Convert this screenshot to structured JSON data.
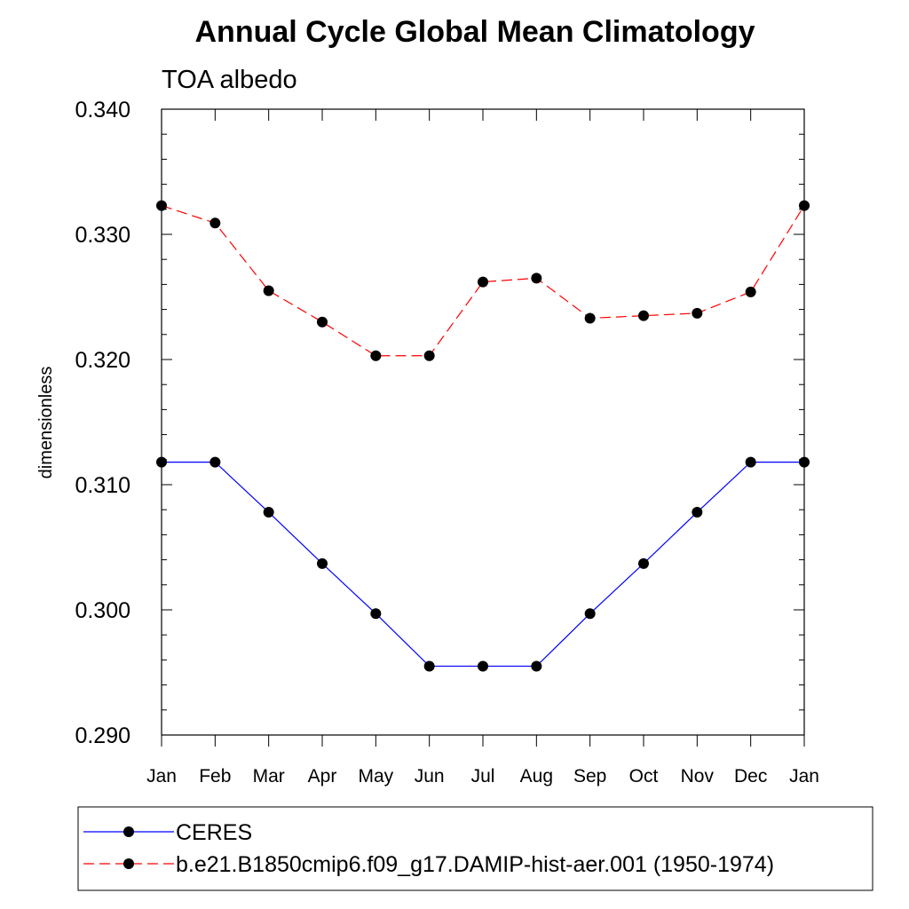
{
  "chart_data": {
    "type": "line",
    "title": "Annual Cycle Global Mean Climatology",
    "subtitle": "TOA albedo",
    "ylabel": "dimensionless",
    "xlabel": "",
    "ylim": [
      0.29,
      0.34
    ],
    "yticks": [
      "0.290",
      "0.300",
      "0.310",
      "0.320",
      "0.330",
      "0.340"
    ],
    "categories": [
      "Jan",
      "Feb",
      "Mar",
      "Apr",
      "May",
      "Jun",
      "Jul",
      "Aug",
      "Sep",
      "Oct",
      "Nov",
      "Dec",
      "Jan"
    ],
    "grid": false,
    "legend_position": "bottom",
    "series": [
      {
        "name": "CERES",
        "color": "#0000ff",
        "dash": "solid",
        "values": [
          0.3118,
          0.3118,
          0.3078,
          0.3037,
          0.2997,
          0.2955,
          0.2955,
          0.2955,
          0.2997,
          0.3037,
          0.3078,
          0.3118,
          0.3118
        ]
      },
      {
        "name": "b.e21.B1850cmip6.f09_g17.DAMIP-hist-aer.001 (1950-1974)",
        "color": "#ff0000",
        "dash": "dashed",
        "values": [
          0.3323,
          0.3309,
          0.3255,
          0.323,
          0.3203,
          0.3203,
          0.3262,
          0.3265,
          0.3233,
          0.3235,
          0.3237,
          0.3254,
          0.3323
        ]
      }
    ]
  }
}
